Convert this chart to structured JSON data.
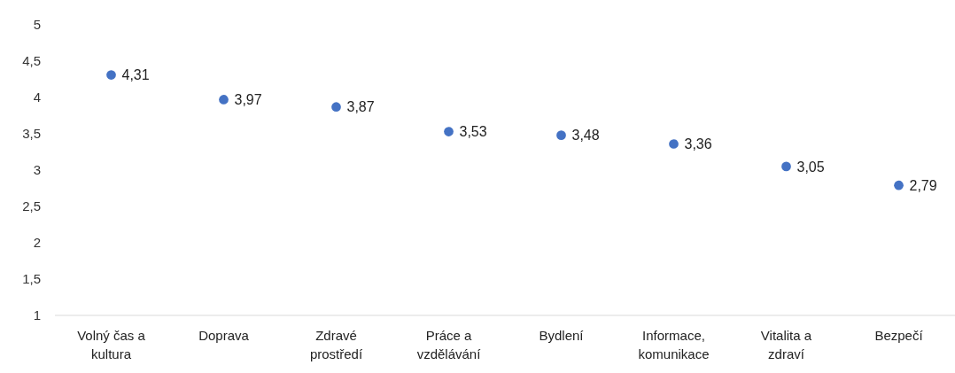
{
  "chart_data": {
    "type": "scatter",
    "categories": [
      "Volný čas a kultura",
      "Doprava",
      "Zdravé prostředí",
      "Práce a vzdělávání",
      "Bydlení",
      "Informace, komunikace",
      "Vitalita a zdraví",
      "Bezpečí"
    ],
    "series": [
      {
        "color": "#4472c4",
        "values": [
          4.31,
          3.97,
          3.87,
          3.53,
          3.48,
          3.36,
          3.05,
          2.79
        ],
        "value_labels": [
          "4,31",
          "3,97",
          "3,87",
          "3,53",
          "3,48",
          "3,36",
          "3,05",
          "2,79"
        ]
      }
    ],
    "ylim": [
      1,
      5
    ],
    "yticks": [
      1,
      {
        "value": 1.5,
        "label": "1,5"
      },
      2,
      {
        "value": 2.5,
        "label": "2,5"
      },
      3,
      {
        "value": 3.5,
        "label": "3,5"
      },
      4,
      {
        "value": 4.5,
        "label": "4,5"
      },
      5
    ],
    "grid": false,
    "marker": "circle"
  }
}
